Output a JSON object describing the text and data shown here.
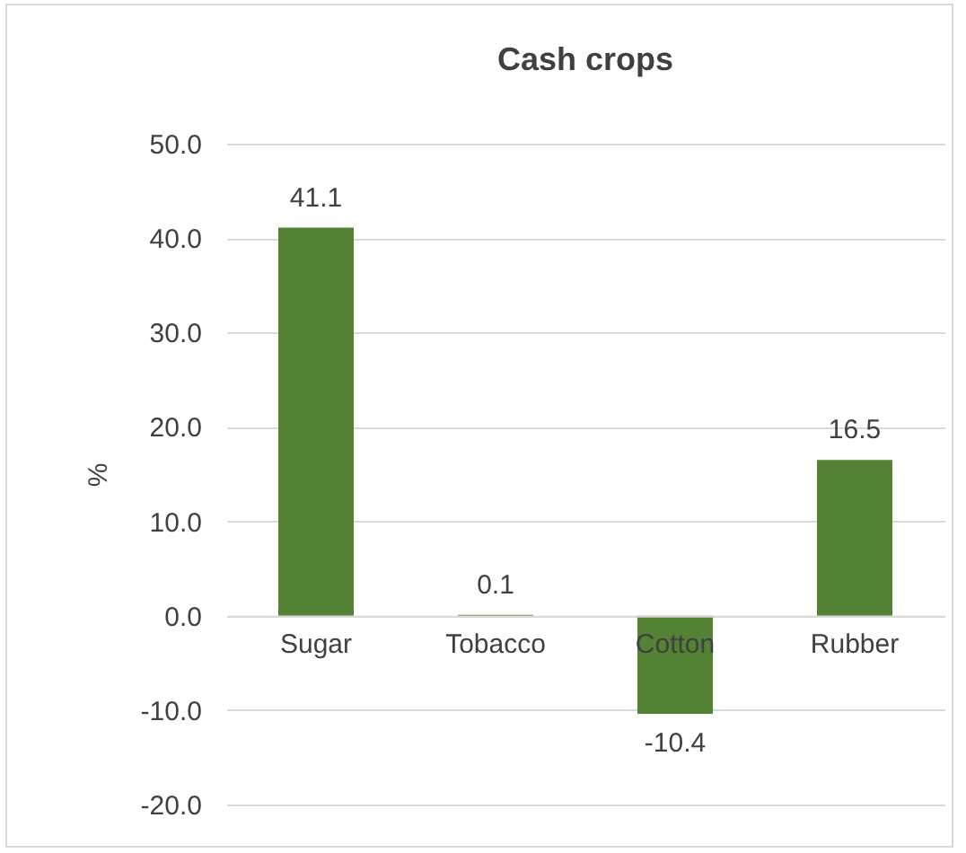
{
  "chart_data": {
    "type": "bar",
    "title": "Cash crops",
    "ylabel": "%",
    "categories": [
      "Sugar",
      "Tobacco",
      "Cotton",
      "Rubber"
    ],
    "values": [
      41.1,
      0.1,
      -10.4,
      16.5
    ],
    "color": "#548235",
    "ylim": [
      -20,
      50
    ],
    "yticks": [
      {
        "value": -20,
        "label": "-20.0"
      },
      {
        "value": -10,
        "label": "-10.0"
      },
      {
        "value": 0,
        "label": "0.0"
      },
      {
        "value": 10,
        "label": "10.0"
      },
      {
        "value": 20,
        "label": "20.0"
      },
      {
        "value": 30,
        "label": "30.0"
      },
      {
        "value": 40,
        "label": "40.0"
      },
      {
        "value": 50,
        "label": "50.0"
      }
    ],
    "grid": "y",
    "data_labels": true
  }
}
